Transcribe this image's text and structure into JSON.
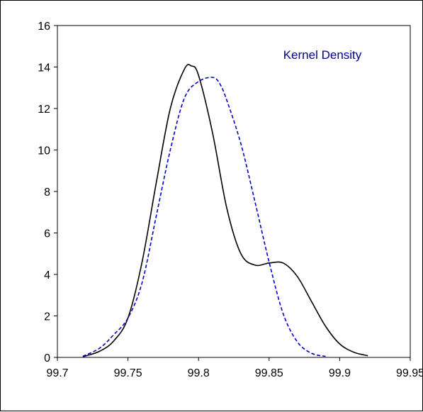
{
  "chart_data": {
    "type": "line",
    "title": "",
    "xlabel": "",
    "ylabel": "",
    "xlim": [
      99.7,
      99.95
    ],
    "ylim": [
      0,
      16
    ],
    "x_ticks": [
      "99.7",
      "99.75",
      "99.8",
      "99.85",
      "99.9",
      "99.95"
    ],
    "y_ticks": [
      "0",
      "2",
      "4",
      "6",
      "8",
      "10",
      "12",
      "14",
      "16"
    ],
    "grid": false,
    "legend": {
      "text": "Kernel Density",
      "color": "#00008B",
      "placement": "top-right"
    },
    "series": [
      {
        "style": "solid",
        "color": "#000000",
        "x": [
          99.718,
          99.73,
          99.74,
          99.75,
          99.76,
          99.77,
          99.78,
          99.79,
          99.795,
          99.8,
          99.81,
          99.82,
          99.83,
          99.84,
          99.85,
          99.86,
          99.87,
          99.88,
          99.89,
          99.9,
          99.91,
          99.92
        ],
        "values": [
          0.03,
          0.3,
          0.8,
          1.9,
          4.6,
          8.4,
          12.0,
          13.9,
          14.05,
          13.6,
          10.8,
          7.2,
          5.0,
          4.45,
          4.55,
          4.55,
          3.9,
          2.7,
          1.5,
          0.65,
          0.25,
          0.08
        ]
      },
      {
        "style": "dashed",
        "color": "#0000CC",
        "x": [
          99.718,
          99.73,
          99.74,
          99.75,
          99.76,
          99.77,
          99.78,
          99.79,
          99.8,
          99.81,
          99.815,
          99.82,
          99.83,
          99.84,
          99.85,
          99.86,
          99.87,
          99.88,
          99.89
        ],
        "values": [
          0.05,
          0.45,
          1.1,
          1.9,
          3.6,
          6.8,
          10.0,
          12.5,
          13.3,
          13.5,
          13.2,
          12.4,
          10.3,
          7.5,
          4.6,
          2.1,
          0.75,
          0.2,
          0.05
        ]
      }
    ]
  }
}
